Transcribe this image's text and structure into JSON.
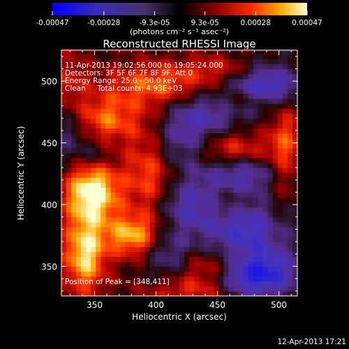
{
  "chart_data": {
    "type": "heatmap",
    "title": "Reconstructed RHESSI Image",
    "xlabel": "Heliocentric X (arcsec)",
    "ylabel": "Heliocentric Y (arcsec)",
    "xlim": [
      323,
      515
    ],
    "ylim": [
      326,
      525
    ],
    "x_ticks": [
      350,
      400,
      450,
      500
    ],
    "y_ticks": [
      350,
      400,
      450,
      500
    ],
    "colorbar": {
      "range": [
        -0.00047,
        0.00047
      ],
      "ticks": [
        -0.00047,
        -0.00028,
        -9.3e-05,
        9.3e-05,
        0.00028,
        0.00047
      ],
      "tick_labels": [
        "-0.00047",
        "-0.00028",
        "-9.3e-05",
        "9.3e-05",
        "0.00028",
        "0.00047"
      ],
      "unit_label": "(photons cm⁻² s⁻¹ asec⁻²)"
    },
    "annotations": [
      "11-Apr-2013 19:02:56.000 to 19:05:24.000",
      "Detectors: 3F 5F 6F 7F 8F 9F, Att 0",
      "Energy Range: 25.0 - 50.0 keV",
      "Clean     Total counts: 4.93E+03"
    ],
    "peak_label": "Position of Peak = [348,411]",
    "peak_position": [
      348,
      411
    ],
    "hotspots": [
      {
        "x": 348,
        "y": 411,
        "v": 1.0,
        "sx": 16,
        "sy": 18
      },
      {
        "x": 342,
        "y": 360,
        "v": 0.85,
        "sx": 12,
        "sy": 22
      },
      {
        "x": 380,
        "y": 375,
        "v": 0.7,
        "sx": 15,
        "sy": 12
      },
      {
        "x": 395,
        "y": 430,
        "v": 0.55,
        "sx": 14,
        "sy": 30
      },
      {
        "x": 360,
        "y": 470,
        "v": 0.55,
        "sx": 18,
        "sy": 14
      },
      {
        "x": 400,
        "y": 498,
        "v": 0.5,
        "sx": 30,
        "sy": 12
      },
      {
        "x": 470,
        "y": 510,
        "v": 0.45,
        "sx": 30,
        "sy": 9
      },
      {
        "x": 458,
        "y": 445,
        "v": 0.45,
        "sx": 24,
        "sy": 10
      },
      {
        "x": 455,
        "y": 400,
        "v": 0.35,
        "sx": 16,
        "sy": 10
      },
      {
        "x": 505,
        "y": 450,
        "v": 0.45,
        "sx": 10,
        "sy": 30
      },
      {
        "x": 440,
        "y": 350,
        "v": 0.35,
        "sx": 18,
        "sy": 10
      },
      {
        "x": 500,
        "y": 380,
        "v": 0.3,
        "sx": 12,
        "sy": 22
      },
      {
        "x": 330,
        "y": 495,
        "v": 0.35,
        "sx": 10,
        "sy": 20
      },
      {
        "x": 425,
        "y": 330,
        "v": 0.35,
        "sx": 25,
        "sy": 8
      },
      {
        "x": 470,
        "y": 485,
        "v": 0.3,
        "sx": 15,
        "sy": 6
      }
    ],
    "coldspots": [
      {
        "x": 490,
        "y": 500,
        "v": -0.9,
        "sx": 22,
        "sy": 14
      },
      {
        "x": 480,
        "y": 380,
        "v": -0.75,
        "sx": 28,
        "sy": 20
      },
      {
        "x": 430,
        "y": 400,
        "v": -0.6,
        "sx": 20,
        "sy": 14
      },
      {
        "x": 420,
        "y": 450,
        "v": -0.55,
        "sx": 20,
        "sy": 16
      },
      {
        "x": 495,
        "y": 345,
        "v": -0.7,
        "sx": 16,
        "sy": 14
      },
      {
        "x": 440,
        "y": 475,
        "v": -0.45,
        "sx": 20,
        "sy": 12
      },
      {
        "x": 470,
        "y": 425,
        "v": -0.5,
        "sx": 22,
        "sy": 10
      },
      {
        "x": 410,
        "y": 360,
        "v": -0.4,
        "sx": 14,
        "sy": 14
      },
      {
        "x": 330,
        "y": 460,
        "v": -0.35,
        "sx": 10,
        "sy": 22
      },
      {
        "x": 350,
        "y": 440,
        "v": -0.3,
        "sx": 10,
        "sy": 10
      },
      {
        "x": 470,
        "y": 340,
        "v": -0.55,
        "sx": 14,
        "sy": 10
      }
    ]
  },
  "footer": {
    "timestamp": "12-Apr-2013 17:21"
  }
}
